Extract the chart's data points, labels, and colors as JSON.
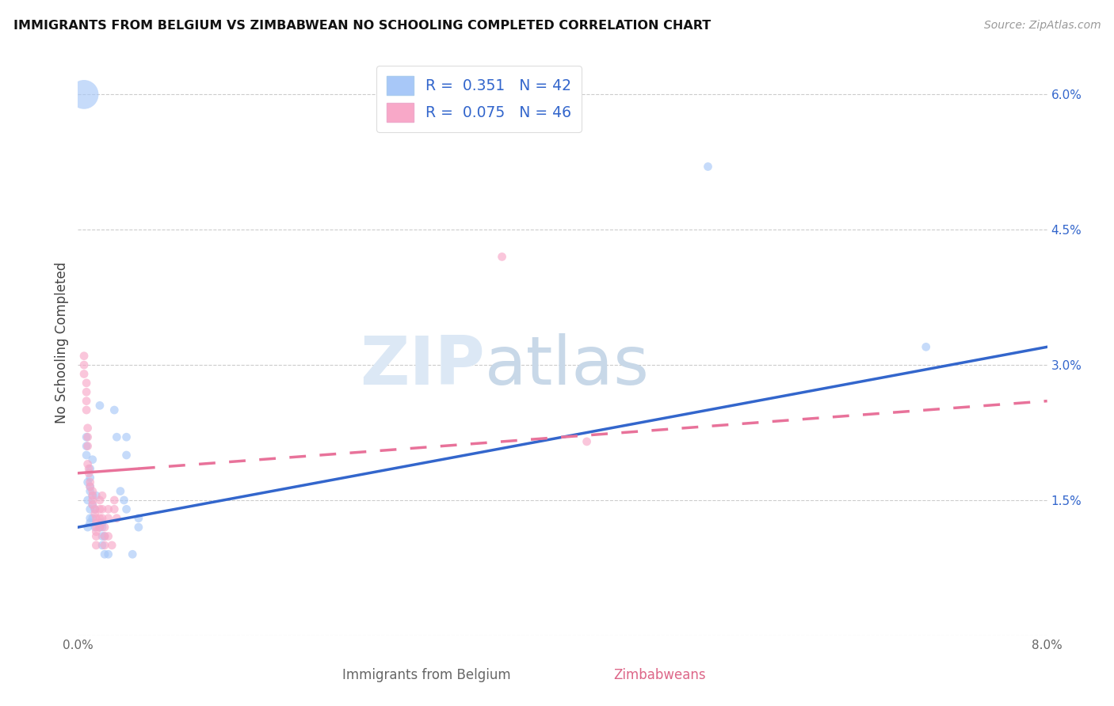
{
  "title": "IMMIGRANTS FROM BELGIUM VS ZIMBABWEAN NO SCHOOLING COMPLETED CORRELATION CHART",
  "source": "Source: ZipAtlas.com",
  "xlabel_belgium": "Immigrants from Belgium",
  "xlabel_zimbabweans": "Zimbabweans",
  "ylabel": "No Schooling Completed",
  "xlim": [
    0.0,
    0.08
  ],
  "ylim": [
    0.0,
    0.065
  ],
  "xticks": [
    0.0,
    0.02,
    0.04,
    0.06,
    0.08
  ],
  "yticks": [
    0.0,
    0.015,
    0.03,
    0.045,
    0.06
  ],
  "ytick_labels": [
    "",
    "1.5%",
    "3.0%",
    "4.5%",
    "6.0%"
  ],
  "R_belgium": 0.351,
  "N_belgium": 42,
  "R_zimbabwe": 0.075,
  "N_zimbabwe": 46,
  "color_belgium": "#a8c8f8",
  "color_zimbabwe": "#f8a8c8",
  "line_color_belgium": "#3366cc",
  "line_color_zimbabwe": "#e8729a",
  "watermark_zip": "ZIP",
  "watermark_atlas": "atlas",
  "belgium_points": [
    [
      0.0005,
      0.06
    ],
    [
      0.0018,
      0.0255
    ],
    [
      0.0007,
      0.022
    ],
    [
      0.0007,
      0.021
    ],
    [
      0.0007,
      0.02
    ],
    [
      0.0012,
      0.0195
    ],
    [
      0.001,
      0.0185
    ],
    [
      0.001,
      0.0175
    ],
    [
      0.0008,
      0.017
    ],
    [
      0.001,
      0.0165
    ],
    [
      0.001,
      0.016
    ],
    [
      0.0012,
      0.0155
    ],
    [
      0.0015,
      0.0155
    ],
    [
      0.0008,
      0.015
    ],
    [
      0.0012,
      0.0145
    ],
    [
      0.001,
      0.014
    ],
    [
      0.0014,
      0.014
    ],
    [
      0.001,
      0.013
    ],
    [
      0.0012,
      0.013
    ],
    [
      0.001,
      0.0125
    ],
    [
      0.0014,
      0.012
    ],
    [
      0.0008,
      0.012
    ],
    [
      0.002,
      0.0125
    ],
    [
      0.0018,
      0.012
    ],
    [
      0.002,
      0.012
    ],
    [
      0.002,
      0.011
    ],
    [
      0.0022,
      0.011
    ],
    [
      0.002,
      0.01
    ],
    [
      0.0022,
      0.009
    ],
    [
      0.0025,
      0.009
    ],
    [
      0.003,
      0.025
    ],
    [
      0.0032,
      0.022
    ],
    [
      0.004,
      0.022
    ],
    [
      0.004,
      0.02
    ],
    [
      0.0035,
      0.016
    ],
    [
      0.0038,
      0.015
    ],
    [
      0.004,
      0.014
    ],
    [
      0.005,
      0.013
    ],
    [
      0.005,
      0.012
    ],
    [
      0.0045,
      0.009
    ],
    [
      0.052,
      0.052
    ],
    [
      0.07,
      0.032
    ]
  ],
  "belgium_sizes": [
    700,
    60,
    60,
    60,
    60,
    60,
    60,
    60,
    60,
    60,
    60,
    60,
    60,
    60,
    60,
    60,
    60,
    60,
    60,
    60,
    60,
    60,
    60,
    60,
    60,
    60,
    60,
    60,
    60,
    60,
    60,
    60,
    60,
    60,
    60,
    60,
    60,
    60,
    60,
    60,
    60,
    60
  ],
  "zimbabwe_points": [
    [
      0.0005,
      0.031
    ],
    [
      0.0005,
      0.03
    ],
    [
      0.0005,
      0.029
    ],
    [
      0.0007,
      0.028
    ],
    [
      0.0007,
      0.027
    ],
    [
      0.0007,
      0.026
    ],
    [
      0.0007,
      0.025
    ],
    [
      0.0008,
      0.023
    ],
    [
      0.0008,
      0.022
    ],
    [
      0.0008,
      0.021
    ],
    [
      0.0008,
      0.019
    ],
    [
      0.0009,
      0.0185
    ],
    [
      0.0009,
      0.018
    ],
    [
      0.001,
      0.017
    ],
    [
      0.001,
      0.0165
    ],
    [
      0.0012,
      0.016
    ],
    [
      0.0012,
      0.0155
    ],
    [
      0.0012,
      0.015
    ],
    [
      0.0012,
      0.0145
    ],
    [
      0.0014,
      0.014
    ],
    [
      0.0014,
      0.0135
    ],
    [
      0.0015,
      0.013
    ],
    [
      0.0015,
      0.0125
    ],
    [
      0.0015,
      0.012
    ],
    [
      0.0015,
      0.0115
    ],
    [
      0.0015,
      0.011
    ],
    [
      0.0015,
      0.01
    ],
    [
      0.0018,
      0.015
    ],
    [
      0.0018,
      0.014
    ],
    [
      0.0018,
      0.013
    ],
    [
      0.0018,
      0.012
    ],
    [
      0.002,
      0.0155
    ],
    [
      0.002,
      0.014
    ],
    [
      0.002,
      0.013
    ],
    [
      0.0022,
      0.012
    ],
    [
      0.0022,
      0.011
    ],
    [
      0.0022,
      0.01
    ],
    [
      0.0025,
      0.014
    ],
    [
      0.0025,
      0.013
    ],
    [
      0.0025,
      0.011
    ],
    [
      0.0028,
      0.01
    ],
    [
      0.003,
      0.015
    ],
    [
      0.003,
      0.014
    ],
    [
      0.0032,
      0.013
    ],
    [
      0.035,
      0.042
    ],
    [
      0.042,
      0.0215
    ]
  ],
  "zimbabwe_sizes": [
    60,
    60,
    60,
    60,
    60,
    60,
    60,
    60,
    60,
    60,
    60,
    60,
    60,
    60,
    60,
    60,
    60,
    60,
    60,
    60,
    60,
    60,
    60,
    60,
    60,
    60,
    60,
    60,
    60,
    60,
    60,
    60,
    60,
    60,
    60,
    60,
    60,
    60,
    60,
    60,
    60,
    60,
    60,
    60,
    60,
    60
  ],
  "line_belgium_x0": 0.0,
  "line_belgium_y0": 0.012,
  "line_belgium_x1": 0.08,
  "line_belgium_y1": 0.032,
  "line_zimbabwe_x0": 0.0,
  "line_zimbabwe_y0": 0.018,
  "line_zimbabwe_x1": 0.08,
  "line_zimbabwe_y1": 0.026,
  "line_zimbabwe_solid_end": 0.005
}
